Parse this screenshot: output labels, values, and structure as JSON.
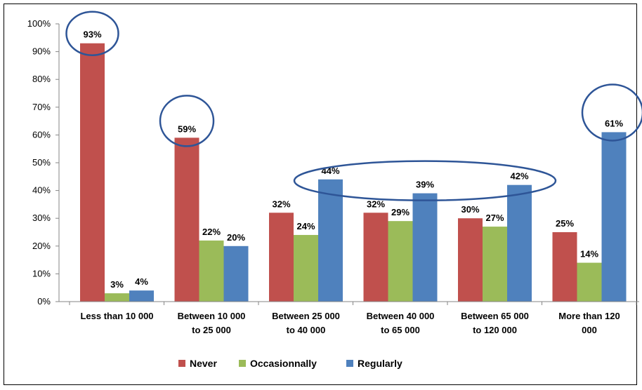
{
  "chart_data": {
    "type": "bar",
    "title": "",
    "xlabel": "",
    "ylabel": "",
    "ylim": [
      0,
      100
    ],
    "yticks": [
      "0%",
      "10%",
      "20%",
      "30%",
      "40%",
      "50%",
      "60%",
      "70%",
      "80%",
      "90%",
      "100%"
    ],
    "categories": [
      [
        "Less than 10 000"
      ],
      [
        "Between 10 000",
        "to 25 000"
      ],
      [
        "Between 25 000",
        "to 40 000"
      ],
      [
        "Between 40 000",
        "to 65 000"
      ],
      [
        "Between 65 000",
        "to 120 000"
      ],
      [
        "More than 120",
        "000"
      ]
    ],
    "series": [
      {
        "name": "Never",
        "color": "#c0504d",
        "values": [
          93,
          59,
          32,
          32,
          30,
          25
        ]
      },
      {
        "name": "Occasionnally",
        "color": "#9bbb59",
        "values": [
          3,
          22,
          24,
          29,
          27,
          14
        ]
      },
      {
        "name": "Regularly",
        "color": "#4f81bd",
        "values": [
          4,
          20,
          44,
          39,
          42,
          61
        ]
      }
    ],
    "value_format": "percent",
    "legend_position": "bottom",
    "grid": false,
    "annotation_color": "#2e5597"
  }
}
